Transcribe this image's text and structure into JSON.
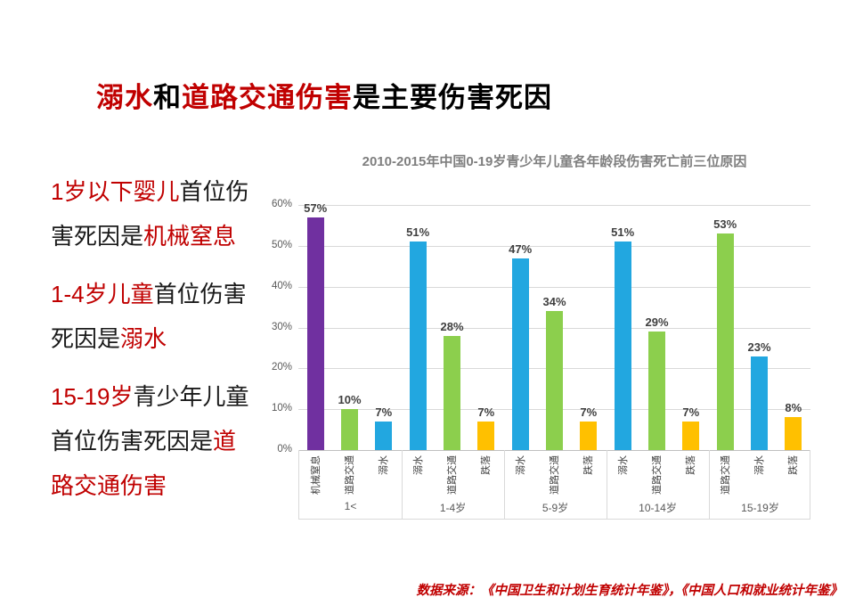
{
  "slide": {
    "title_segments": [
      {
        "text": "溺水",
        "red": true
      },
      {
        "text": "和",
        "red": false
      },
      {
        "text": "道路交通伤害",
        "red": true
      },
      {
        "text": "是主要伤害死因",
        "red": false
      }
    ],
    "sidebar_paragraphs": [
      [
        [
          {
            "text": "1岁以下婴儿",
            "red": true
          },
          {
            "text": "首位伤",
            "red": false
          }
        ],
        [
          {
            "text": "害死因是",
            "red": false
          },
          {
            "text": "机械窒息",
            "red": true
          }
        ]
      ],
      [
        [
          {
            "text": "1-4岁儿童",
            "red": true
          },
          {
            "text": "首位伤害",
            "red": false
          }
        ],
        [
          {
            "text": "死因是",
            "red": false
          },
          {
            "text": "溺水",
            "red": true
          }
        ]
      ],
      [
        [
          {
            "text": "15-19岁",
            "red": true
          },
          {
            "text": "青少年儿童",
            "red": false
          }
        ],
        [
          {
            "text": "首位伤害死因是",
            "red": false
          },
          {
            "text": "道",
            "red": true
          }
        ],
        [
          {
            "text": "路交通伤害",
            "red": true
          }
        ]
      ]
    ],
    "source": "数据来源：《中国卫生和计划生育统计年鉴》，《中国人口和就业统计年鉴》"
  },
  "colors": {
    "accent_red": "#c00000",
    "text_black": "#1a1a1a",
    "chart_title_gray": "#7f7f7f",
    "axis_gray": "#595959",
    "gridline": "#d9d9d9"
  },
  "chart_data": {
    "type": "bar",
    "title": "2010-2015年中国0-19岁青少年儿童各年龄段伤害死亡前三位原因",
    "xlabel": "",
    "ylabel": "",
    "ylim": [
      0,
      60
    ],
    "ytick_step": 10,
    "ytick_suffix": "%",
    "grid": true,
    "legend": "none",
    "series_colors": {
      "purple": "#7030a0",
      "green": "#8ccf4d",
      "blue": "#22a7e0",
      "orange": "#ffc000"
    },
    "groups": [
      {
        "age": "1<",
        "bars": [
          {
            "label": "机械窒息",
            "value": 57,
            "value_label": "57%",
            "color": "purple"
          },
          {
            "label": "道路交通",
            "value": 10,
            "value_label": "10%",
            "color": "green"
          },
          {
            "label": "溺水",
            "value": 7,
            "value_label": "7%",
            "color": "blue"
          }
        ]
      },
      {
        "age": "1-4岁",
        "bars": [
          {
            "label": "溺水",
            "value": 51,
            "value_label": "51%",
            "color": "blue"
          },
          {
            "label": "道路交通",
            "value": 28,
            "value_label": "28%",
            "color": "green"
          },
          {
            "label": "跌落",
            "value": 7,
            "value_label": "7%",
            "color": "orange"
          }
        ]
      },
      {
        "age": "5-9岁",
        "bars": [
          {
            "label": "溺水",
            "value": 47,
            "value_label": "47%",
            "color": "blue"
          },
          {
            "label": "道路交通",
            "value": 34,
            "value_label": "34%",
            "color": "green"
          },
          {
            "label": "跌落",
            "value": 7,
            "value_label": "7%",
            "color": "orange"
          }
        ]
      },
      {
        "age": "10-14岁",
        "bars": [
          {
            "label": "溺水",
            "value": 51,
            "value_label": "51%",
            "color": "blue"
          },
          {
            "label": "道路交通",
            "value": 29,
            "value_label": "29%",
            "color": "green"
          },
          {
            "label": "跌落",
            "value": 7,
            "value_label": "7%",
            "color": "orange"
          }
        ]
      },
      {
        "age": "15-19岁",
        "bars": [
          {
            "label": "道路交通",
            "value": 53,
            "value_label": "53%",
            "color": "green"
          },
          {
            "label": "溺水",
            "value": 23,
            "value_label": "23%",
            "color": "blue"
          },
          {
            "label": "跌落",
            "value": 8,
            "value_label": "8%",
            "color": "orange"
          }
        ]
      }
    ]
  }
}
